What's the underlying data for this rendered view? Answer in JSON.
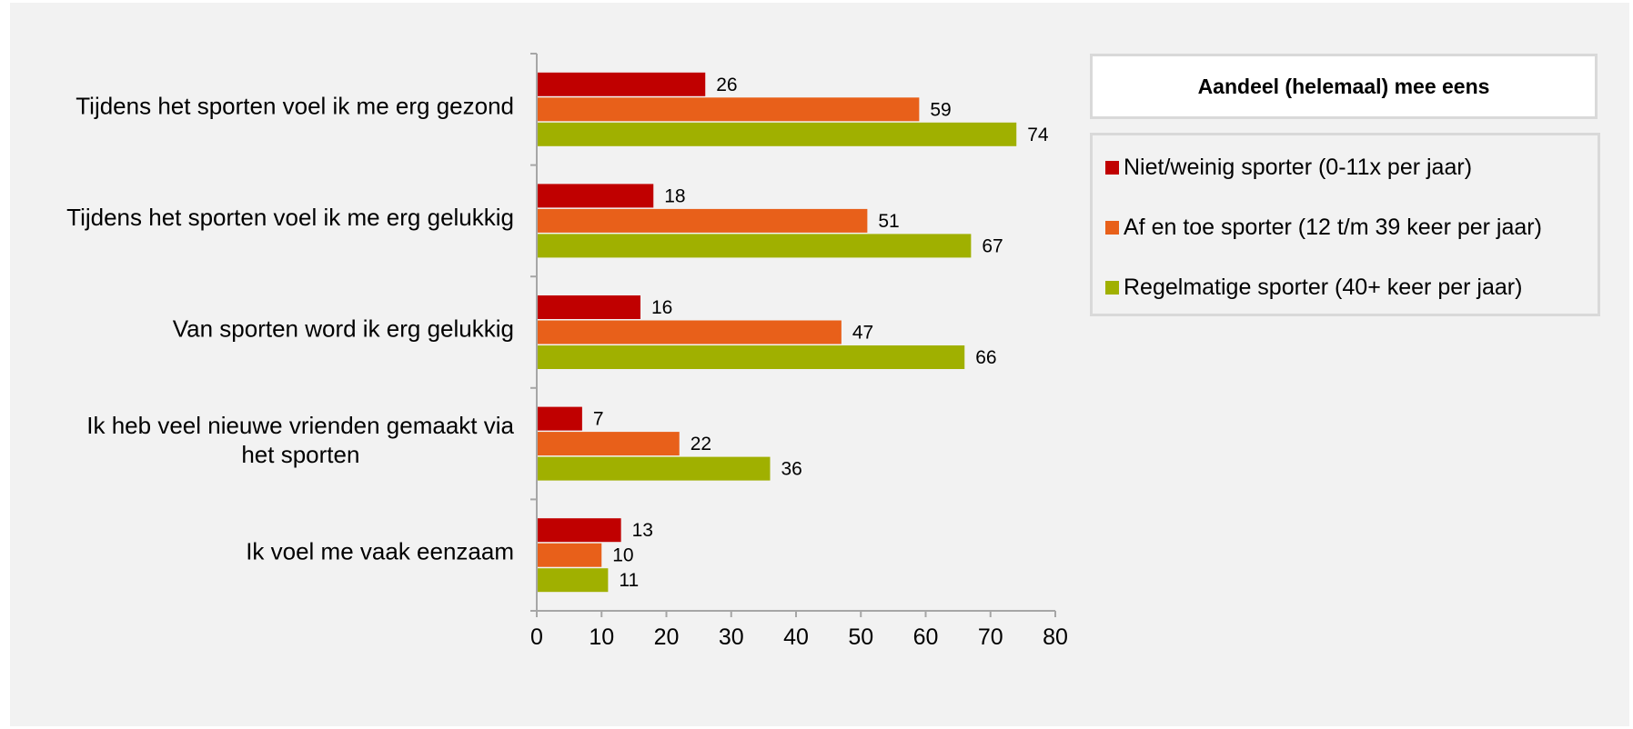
{
  "chart_data": {
    "type": "bar",
    "orientation": "horizontal",
    "categories": [
      [
        "Tijdens het sporten voel ik me erg gezond"
      ],
      [
        "Tijdens het sporten voel ik me erg gelukkig"
      ],
      [
        "Van sporten word ik erg gelukkig"
      ],
      [
        "Ik heb veel nieuwe vrienden gemaakt via",
        "het sporten"
      ],
      [
        "Ik voel me vaak eenzaam"
      ]
    ],
    "series": [
      {
        "name": "Niet/weinig sporter (0-11x per jaar)",
        "color": "#c00000",
        "values": [
          26,
          18,
          16,
          7,
          13
        ]
      },
      {
        "name": "Af en toe sporter (12 t/m 39 keer per jaar)",
        "color": "#e8601a",
        "values": [
          59,
          51,
          47,
          22,
          10
        ]
      },
      {
        "name": "Regelmatige sporter (40+ keer per jaar)",
        "color": "#a0b000",
        "values": [
          74,
          67,
          66,
          36,
          11
        ]
      }
    ],
    "xlim": [
      0,
      80
    ],
    "xticks": [
      0,
      10,
      20,
      30,
      40,
      50,
      60,
      70,
      80
    ],
    "grid": false,
    "data_labels": true,
    "legend_title": "Aandeel (helemaal) mee eens",
    "legend_position": "right"
  },
  "colors": {
    "background": "#f2f2f2",
    "axis": "#a6a6a6",
    "legend_border": "#d9d9d9"
  }
}
